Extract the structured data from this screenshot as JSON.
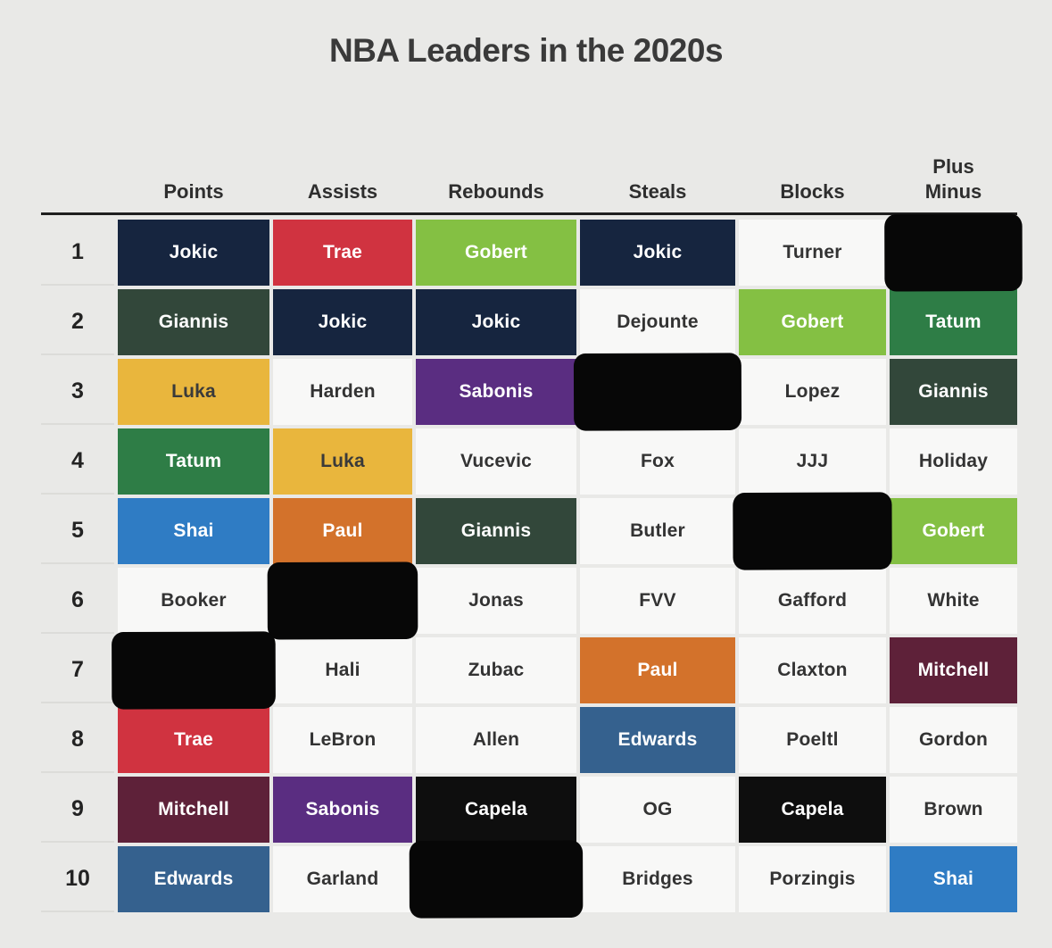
{
  "title": "NBA Leaders in the 2020s",
  "page": {
    "background": "#e9e9e7",
    "rule_color": "#1f1f1f",
    "header_text_color": "#2e2e2e"
  },
  "palette": {
    "navy": {
      "bg": "#16253f",
      "fg": "#ffffff"
    },
    "red": {
      "bg": "#d03340",
      "fg": "#ffffff"
    },
    "lime": {
      "bg": "#84c043",
      "fg": "#ffffff"
    },
    "forest": {
      "bg": "#32473a",
      "fg": "#ffffff"
    },
    "gold": {
      "bg": "#e9b63d",
      "fg": "#3a3a3a"
    },
    "green": {
      "bg": "#2e7d46",
      "fg": "#ffffff"
    },
    "blue": {
      "bg": "#2f7cc4",
      "fg": "#ffffff"
    },
    "orange": {
      "bg": "#d3722b",
      "fg": "#ffffff"
    },
    "purple": {
      "bg": "#5a2d81",
      "fg": "#ffffff"
    },
    "maroon": {
      "bg": "#5e2139",
      "fg": "#ffffff"
    },
    "steel": {
      "bg": "#35618e",
      "fg": "#ffffff"
    },
    "black": {
      "bg": "#0e0e0e",
      "fg": "#ffffff"
    },
    "white": {
      "bg": "#f8f8f7",
      "fg": "#333333"
    },
    "redacted": {
      "bg": "#070707",
      "fg": "#070707"
    }
  },
  "chart_data": {
    "type": "table",
    "title": "NBA Leaders in the 2020s",
    "columns": [
      {
        "id": "points",
        "lines": [
          "Points"
        ]
      },
      {
        "id": "assists",
        "lines": [
          "Assists"
        ]
      },
      {
        "id": "rebounds",
        "lines": [
          "Rebounds"
        ]
      },
      {
        "id": "steals",
        "lines": [
          "Steals"
        ]
      },
      {
        "id": "blocks",
        "lines": [
          "Blocks"
        ]
      },
      {
        "id": "plus-minus",
        "lines": [
          "Plus",
          "Minus"
        ]
      }
    ],
    "rows": [
      {
        "rank": "1",
        "cells": [
          {
            "player": "Jokic",
            "color": "navy"
          },
          {
            "player": "Trae",
            "color": "red"
          },
          {
            "player": "Gobert",
            "color": "lime"
          },
          {
            "player": "Jokic",
            "color": "navy"
          },
          {
            "player": "Turner",
            "color": "white"
          },
          {
            "player": "",
            "color": "redacted",
            "redacted": true
          }
        ]
      },
      {
        "rank": "2",
        "cells": [
          {
            "player": "Giannis",
            "color": "forest"
          },
          {
            "player": "Jokic",
            "color": "navy"
          },
          {
            "player": "Jokic",
            "color": "navy"
          },
          {
            "player": "Dejounte",
            "color": "white"
          },
          {
            "player": "Gobert",
            "color": "lime"
          },
          {
            "player": "Tatum",
            "color": "green"
          }
        ]
      },
      {
        "rank": "3",
        "cells": [
          {
            "player": "Luka",
            "color": "gold"
          },
          {
            "player": "Harden",
            "color": "white"
          },
          {
            "player": "Sabonis",
            "color": "purple"
          },
          {
            "player": "",
            "color": "redacted",
            "redacted": true
          },
          {
            "player": "Lopez",
            "color": "white"
          },
          {
            "player": "Giannis",
            "color": "forest"
          }
        ]
      },
      {
        "rank": "4",
        "cells": [
          {
            "player": "Tatum",
            "color": "green"
          },
          {
            "player": "Luka",
            "color": "gold"
          },
          {
            "player": "Vucevic",
            "color": "white"
          },
          {
            "player": "Fox",
            "color": "white"
          },
          {
            "player": "JJJ",
            "color": "white"
          },
          {
            "player": "Holiday",
            "color": "white"
          }
        ]
      },
      {
        "rank": "5",
        "cells": [
          {
            "player": "Shai",
            "color": "blue"
          },
          {
            "player": "Paul",
            "color": "orange"
          },
          {
            "player": "Giannis",
            "color": "forest"
          },
          {
            "player": "Butler",
            "color": "white"
          },
          {
            "player": "",
            "color": "redacted",
            "redacted": true
          },
          {
            "player": "Gobert",
            "color": "lime"
          }
        ]
      },
      {
        "rank": "6",
        "cells": [
          {
            "player": "Booker",
            "color": "white"
          },
          {
            "player": "",
            "color": "redacted",
            "redacted": true
          },
          {
            "player": "Jonas",
            "color": "white"
          },
          {
            "player": "FVV",
            "color": "white"
          },
          {
            "player": "Gafford",
            "color": "white"
          },
          {
            "player": "White",
            "color": "white"
          }
        ]
      },
      {
        "rank": "7",
        "cells": [
          {
            "player": "",
            "color": "redacted",
            "redacted": true
          },
          {
            "player": "Hali",
            "color": "white"
          },
          {
            "player": "Zubac",
            "color": "white"
          },
          {
            "player": "Paul",
            "color": "orange"
          },
          {
            "player": "Claxton",
            "color": "white"
          },
          {
            "player": "Mitchell",
            "color": "maroon"
          }
        ]
      },
      {
        "rank": "8",
        "cells": [
          {
            "player": "Trae",
            "color": "red"
          },
          {
            "player": "LeBron",
            "color": "white"
          },
          {
            "player": "Allen",
            "color": "white"
          },
          {
            "player": "Edwards",
            "color": "steel"
          },
          {
            "player": "Poeltl",
            "color": "white"
          },
          {
            "player": "Gordon",
            "color": "white"
          }
        ]
      },
      {
        "rank": "9",
        "cells": [
          {
            "player": "Mitchell",
            "color": "maroon"
          },
          {
            "player": "Sabonis",
            "color": "purple"
          },
          {
            "player": "Capela",
            "color": "black"
          },
          {
            "player": "OG",
            "color": "white"
          },
          {
            "player": "Capela",
            "color": "black"
          },
          {
            "player": "Brown",
            "color": "white"
          }
        ]
      },
      {
        "rank": "10",
        "cells": [
          {
            "player": "Edwards",
            "color": "steel"
          },
          {
            "player": "Garland",
            "color": "white"
          },
          {
            "player": "",
            "color": "redacted",
            "redacted": true
          },
          {
            "player": "Bridges",
            "color": "white"
          },
          {
            "player": "Porzingis",
            "color": "white"
          },
          {
            "player": "Shai",
            "color": "blue"
          }
        ]
      }
    ]
  }
}
